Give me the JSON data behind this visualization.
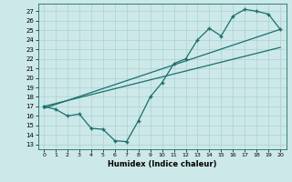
{
  "title": "",
  "xlabel": "Humidex (Indice chaleur)",
  "bg_color": "#cce8e8",
  "line_color": "#1a6e6e",
  "grid_color": "#aed0d0",
  "x_ticks": [
    0,
    1,
    2,
    3,
    4,
    5,
    6,
    7,
    8,
    9,
    10,
    11,
    12,
    13,
    14,
    15,
    16,
    17,
    18,
    19,
    20
  ],
  "y_ticks": [
    13,
    14,
    15,
    16,
    17,
    18,
    19,
    20,
    21,
    22,
    23,
    24,
    25,
    26,
    27
  ],
  "ylim": [
    12.5,
    27.8
  ],
  "xlim": [
    -0.5,
    20.5
  ],
  "line1_x": [
    0,
    1,
    2,
    3,
    4,
    5,
    6,
    7,
    8,
    9,
    10,
    11,
    12,
    13,
    14,
    15,
    16,
    17,
    18,
    19,
    20
  ],
  "line1_y": [
    17.0,
    16.7,
    16.0,
    16.2,
    14.7,
    14.6,
    13.4,
    13.3,
    15.5,
    18.0,
    19.5,
    21.5,
    22.0,
    24.0,
    25.2,
    24.4,
    26.5,
    27.2,
    27.0,
    26.7,
    25.1
  ],
  "line2_x": [
    0,
    20
  ],
  "line2_y": [
    17.0,
    23.2
  ],
  "line3_x": [
    0,
    20
  ],
  "line3_y": [
    16.8,
    25.1
  ]
}
